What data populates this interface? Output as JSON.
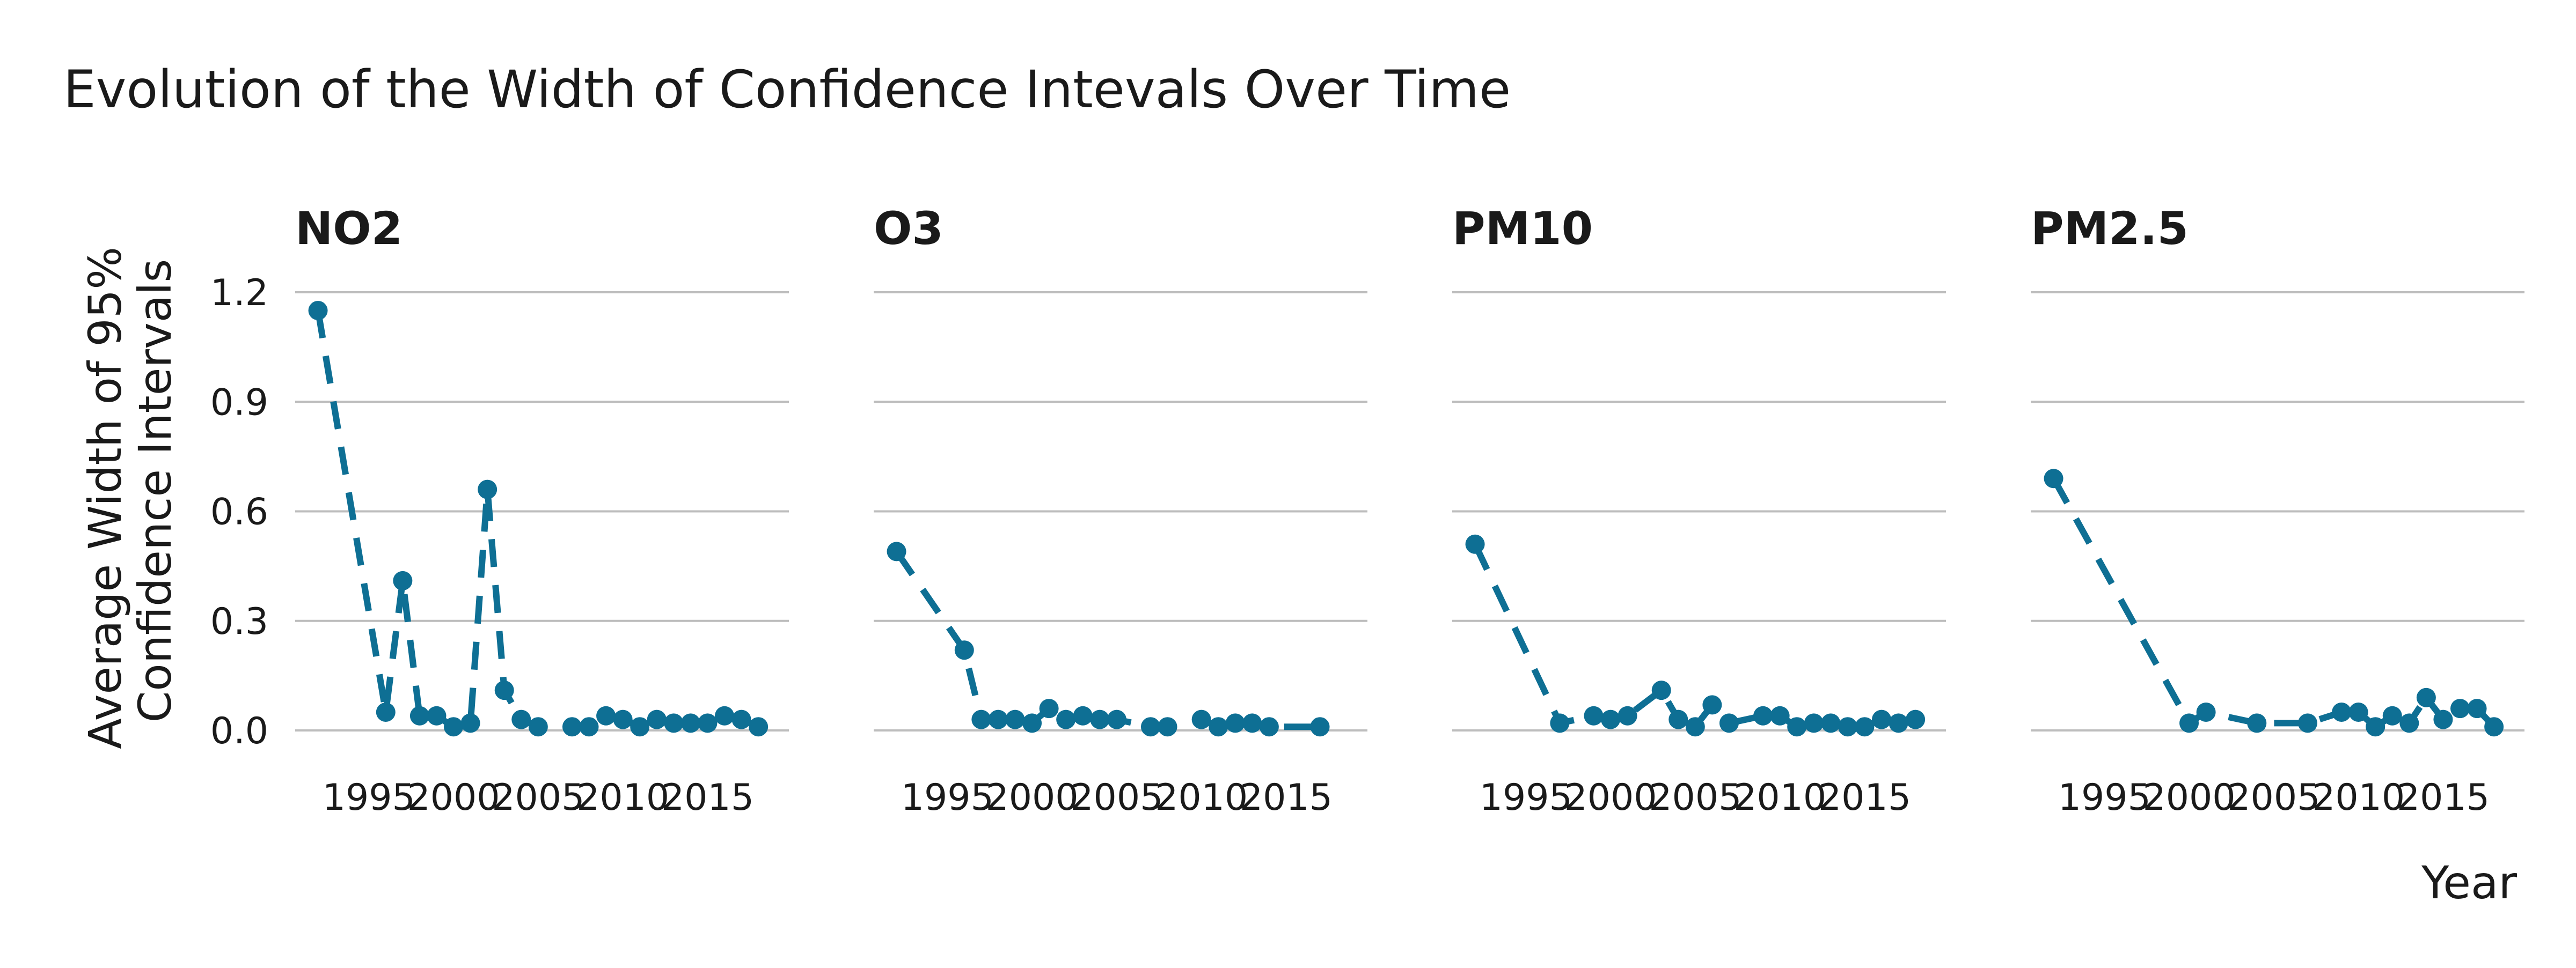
{
  "chart_data": {
    "type": "line",
    "title": "Evolution of the Width of Confidence Intevals Over Time",
    "ylabel_lines": [
      "Average Width of 95%",
      "Confidence Intervals"
    ],
    "xlabel": "Year",
    "ylim": [
      0,
      1.2
    ],
    "xlim": [
      1991,
      2019
    ],
    "yticks": [
      "0.0",
      "0.3",
      "0.6",
      "0.9",
      "1.2"
    ],
    "xticks": [
      "1995",
      "2000",
      "2005",
      "2010",
      "2015"
    ],
    "colors": {
      "series": "#0e6f94"
    },
    "panels": [
      {
        "title": "NO2",
        "x": [
          1992,
          1996,
          1997,
          1998,
          1999,
          2000,
          2001,
          2002,
          2003,
          2004,
          2005,
          2007,
          2008,
          2009,
          2010,
          2011,
          2012,
          2013,
          2014,
          2015,
          2016,
          2017,
          2018
        ],
        "y": [
          1.15,
          0.05,
          0.41,
          0.04,
          0.04,
          0.01,
          0.02,
          0.66,
          0.11,
          0.03,
          0.01,
          0.01,
          0.01,
          0.04,
          0.03,
          0.01,
          0.03,
          0.02,
          0.02,
          0.02,
          0.04,
          0.03,
          0.01
        ]
      },
      {
        "title": "O3",
        "x": [
          1992,
          1996,
          1997,
          1998,
          1999,
          2000,
          2001,
          2002,
          2003,
          2004,
          2005,
          2007,
          2008,
          2010,
          2011,
          2012,
          2013,
          2014,
          2017
        ],
        "y": [
          0.49,
          0.22,
          0.03,
          0.03,
          0.03,
          0.02,
          0.06,
          0.03,
          0.04,
          0.03,
          0.03,
          0.01,
          0.01,
          0.03,
          0.01,
          0.02,
          0.02,
          0.01,
          0.01
        ]
      },
      {
        "title": "PM10",
        "x": [
          1992,
          1997,
          1999,
          2000,
          2001,
          2003,
          2004,
          2005,
          2006,
          2007,
          2009,
          2010,
          2011,
          2012,
          2013,
          2014,
          2015,
          2016,
          2017,
          2018
        ],
        "y": [
          0.51,
          0.02,
          0.04,
          0.03,
          0.04,
          0.11,
          0.03,
          0.01,
          0.07,
          0.02,
          0.04,
          0.04,
          0.01,
          0.02,
          0.02,
          0.01,
          0.01,
          0.03,
          0.02,
          0.03
        ]
      },
      {
        "title": "PM2.5",
        "x": [
          1992,
          2000,
          2001,
          2004,
          2007,
          2009,
          2010,
          2011,
          2012,
          2013,
          2014,
          2015,
          2016,
          2017,
          2018
        ],
        "y": [
          0.69,
          0.02,
          0.05,
          0.02,
          0.02,
          0.05,
          0.05,
          0.01,
          0.04,
          0.02,
          0.09,
          0.03,
          0.06,
          0.06,
          0.01
        ]
      }
    ]
  }
}
